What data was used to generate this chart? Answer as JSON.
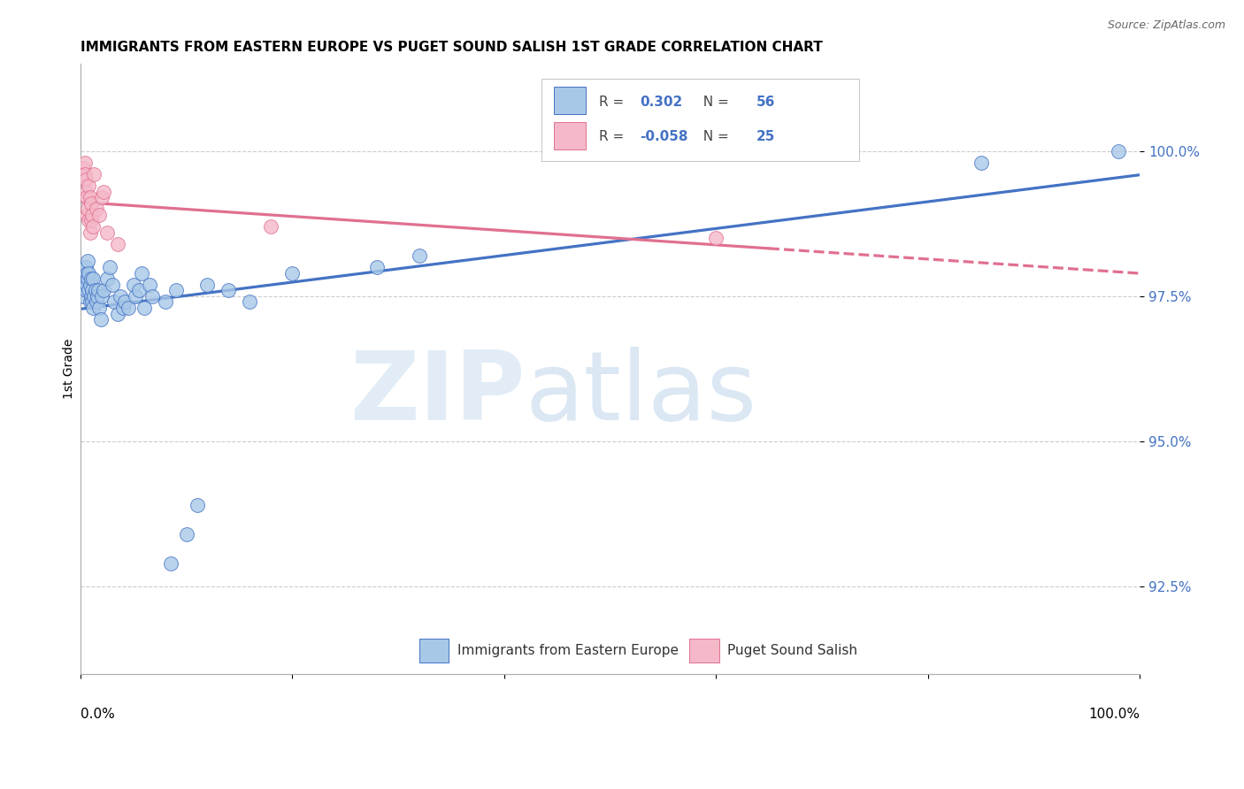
{
  "title": "IMMIGRANTS FROM EASTERN EUROPE VS PUGET SOUND SALISH 1ST GRADE CORRELATION CHART",
  "source": "Source: ZipAtlas.com",
  "ylabel": "1st Grade",
  "legend_label1": "Immigrants from Eastern Europe",
  "legend_label2": "Puget Sound Salish",
  "R1": 0.302,
  "N1": 56,
  "R2": -0.058,
  "N2": 25,
  "color_blue": "#A8C8E8",
  "color_pink": "#F4B8C8",
  "line_blue": "#4472C4",
  "line_pink": "#E07090",
  "ylim_min": 91.0,
  "ylim_max": 101.5,
  "xlim_min": 0.0,
  "xlim_max": 1.0,
  "blue_x": [
    0.003,
    0.004,
    0.005,
    0.005,
    0.006,
    0.006,
    0.007,
    0.007,
    0.008,
    0.008,
    0.009,
    0.009,
    0.01,
    0.01,
    0.011,
    0.011,
    0.012,
    0.012,
    0.013,
    0.014,
    0.015,
    0.016,
    0.017,
    0.018,
    0.019,
    0.02,
    0.022,
    0.025,
    0.028,
    0.03,
    0.032,
    0.035,
    0.038,
    0.04,
    0.042,
    0.045,
    0.05,
    0.052,
    0.055,
    0.058,
    0.06,
    0.065,
    0.068,
    0.08,
    0.085,
    0.09,
    0.1,
    0.11,
    0.12,
    0.14,
    0.16,
    0.2,
    0.28,
    0.32,
    0.85,
    0.98
  ],
  "blue_y": [
    97.5,
    97.8,
    98.0,
    97.6,
    97.9,
    97.7,
    98.1,
    97.8,
    97.6,
    97.9,
    97.4,
    97.7,
    97.8,
    97.5,
    97.4,
    97.6,
    97.8,
    97.3,
    97.5,
    97.6,
    97.4,
    97.5,
    97.6,
    97.3,
    97.1,
    97.5,
    97.6,
    97.8,
    98.0,
    97.7,
    97.4,
    97.2,
    97.5,
    97.3,
    97.4,
    97.3,
    97.7,
    97.5,
    97.6,
    97.9,
    97.3,
    97.7,
    97.5,
    97.4,
    92.9,
    97.6,
    93.4,
    93.9,
    97.7,
    97.6,
    97.4,
    97.9,
    98.0,
    98.2,
    99.8,
    100.0
  ],
  "pink_x": [
    0.003,
    0.004,
    0.004,
    0.005,
    0.005,
    0.006,
    0.006,
    0.007,
    0.008,
    0.008,
    0.009,
    0.009,
    0.01,
    0.01,
    0.011,
    0.012,
    0.013,
    0.015,
    0.018,
    0.02,
    0.022,
    0.025,
    0.035,
    0.18,
    0.6
  ],
  "pink_y": [
    99.7,
    99.8,
    99.6,
    99.5,
    99.3,
    99.2,
    98.9,
    99.0,
    99.4,
    98.8,
    98.6,
    99.2,
    99.1,
    98.8,
    98.9,
    98.7,
    99.6,
    99.0,
    98.9,
    99.2,
    99.3,
    98.6,
    98.4,
    98.7,
    98.5
  ],
  "yticks": [
    92.5,
    95.0,
    97.5,
    100.0
  ],
  "ytick_labels": [
    "92.5%",
    "95.0%",
    "97.5%",
    "100.0%"
  ]
}
